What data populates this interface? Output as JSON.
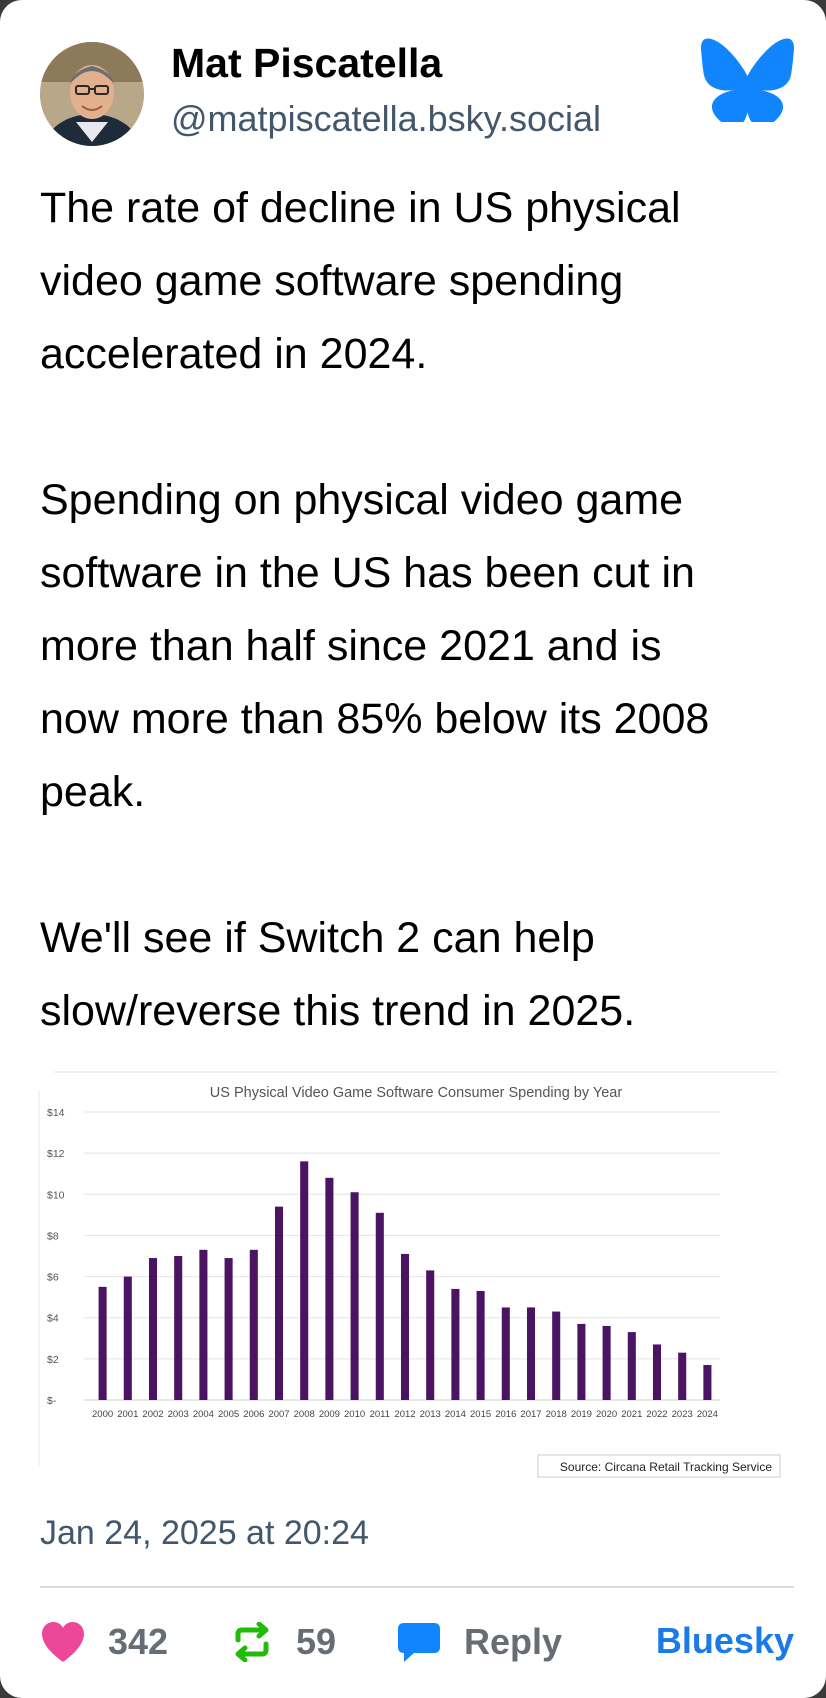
{
  "author": {
    "display_name": "Mat Piscatella",
    "handle": "@matpiscatella.bsky.social"
  },
  "post": {
    "paragraphs": [
      [
        "The rate of decline in US physical",
        "video game software spending",
        "accelerated in 2024."
      ],
      [
        "Spending on physical video game",
        "software in the US has been cut in",
        "more than half since 2021 and is",
        "now more than 85% below its 2008",
        "peak."
      ],
      [
        "We'll see if Switch 2 can help",
        "slow/reverse this trend in 2025."
      ]
    ],
    "timestamp": "Jan 24, 2025 at 20:24"
  },
  "chart_data": {
    "type": "bar",
    "title": "US Physical Video Game Software Consumer Spending by Year",
    "categories": [
      "2000",
      "2001",
      "2002",
      "2003",
      "2004",
      "2005",
      "2006",
      "2007",
      "2008",
      "2009",
      "2010",
      "2011",
      "2012",
      "2013",
      "2014",
      "2015",
      "2016",
      "2017",
      "2018",
      "2019",
      "2020",
      "2021",
      "2022",
      "2023",
      "2024"
    ],
    "values": [
      5.5,
      6.0,
      6.9,
      7.0,
      7.3,
      6.9,
      7.3,
      9.4,
      11.6,
      10.8,
      10.1,
      9.1,
      7.1,
      6.3,
      5.4,
      5.3,
      4.5,
      4.5,
      4.3,
      3.7,
      3.6,
      3.3,
      2.7,
      2.3,
      1.7
    ],
    "y_ticks": [
      "$-",
      "$2",
      "$4",
      "$6",
      "$8",
      "$10",
      "$12",
      "$14"
    ],
    "ylim": [
      0,
      14
    ],
    "grid": true,
    "source_note": "Source: Circana Retail Tracking Service",
    "bar_color": "#4a1463"
  },
  "actions": {
    "likes": "342",
    "reposts": "59",
    "reply_label": "Reply",
    "brand_label": "Bluesky"
  },
  "colors": {
    "heart": "#ec4899",
    "repost": "#20bc07",
    "reply": "#1185fe",
    "brand": "#1a7ae6"
  }
}
